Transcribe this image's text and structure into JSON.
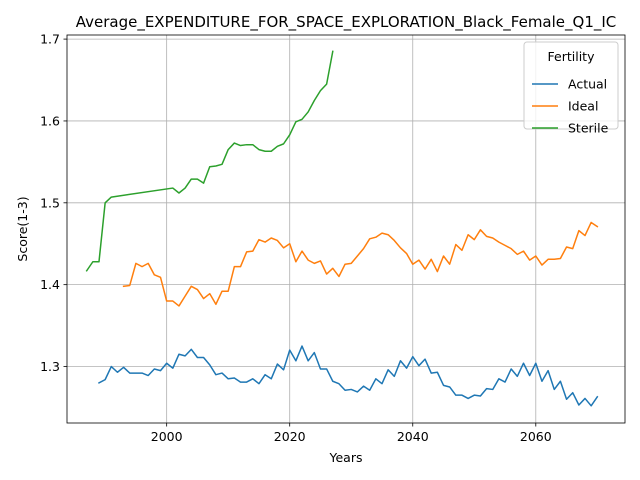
{
  "chart_data": {
    "type": "line",
    "title": "Average_EXPENDITURE_FOR_SPACE_EXPLORATION_Black_Female_Q1_IC",
    "xlabel": "Years",
    "ylabel": "Score(1-3)",
    "xlim": [
      1983.8,
      2074.5
    ],
    "ylim": [
      1.231,
      1.705
    ],
    "x_ticks": [
      2000,
      2020,
      2040,
      2060
    ],
    "y_ticks": [
      1.3,
      1.4,
      1.5,
      1.6,
      1.7
    ],
    "x_tick_labels": [
      "2000",
      "2020",
      "2040",
      "2060"
    ],
    "y_tick_labels": [
      "1.3",
      "1.4",
      "1.5",
      "1.6",
      "1.7"
    ],
    "grid": true,
    "legend": {
      "title": "Fertility",
      "position": "top-right"
    },
    "series": [
      {
        "name": "Actual",
        "color": "#1f77b4",
        "points": [
          [
            1989,
            1.28
          ],
          [
            1990,
            1.284
          ],
          [
            1991,
            1.3
          ],
          [
            1992,
            1.293
          ],
          [
            1993,
            1.299
          ],
          [
            1994,
            1.292
          ],
          [
            1995,
            1.292
          ],
          [
            1996,
            1.292
          ],
          [
            1997,
            1.289
          ],
          [
            1998,
            1.297
          ],
          [
            1999,
            1.295
          ],
          [
            2000,
            1.304
          ],
          [
            2001,
            1.298
          ],
          [
            2002,
            1.315
          ],
          [
            2003,
            1.313
          ],
          [
            2004,
            1.321
          ],
          [
            2005,
            1.311
          ],
          [
            2006,
            1.311
          ],
          [
            2007,
            1.302
          ],
          [
            2008,
            1.29
          ],
          [
            2009,
            1.292
          ],
          [
            2010,
            1.285
          ],
          [
            2011,
            1.286
          ],
          [
            2012,
            1.281
          ],
          [
            2013,
            1.281
          ],
          [
            2014,
            1.285
          ],
          [
            2015,
            1.279
          ],
          [
            2016,
            1.29
          ],
          [
            2017,
            1.285
          ],
          [
            2018,
            1.303
          ],
          [
            2019,
            1.296
          ],
          [
            2020,
            1.32
          ],
          [
            2021,
            1.307
          ],
          [
            2022,
            1.325
          ],
          [
            2023,
            1.307
          ],
          [
            2024,
            1.317
          ],
          [
            2025,
            1.297
          ],
          [
            2026,
            1.297
          ],
          [
            2027,
            1.282
          ],
          [
            2028,
            1.279
          ],
          [
            2029,
            1.271
          ],
          [
            2030,
            1.272
          ],
          [
            2031,
            1.269
          ],
          [
            2032,
            1.276
          ],
          [
            2033,
            1.271
          ],
          [
            2034,
            1.285
          ],
          [
            2035,
            1.279
          ],
          [
            2036,
            1.296
          ],
          [
            2037,
            1.288
          ],
          [
            2038,
            1.307
          ],
          [
            2039,
            1.298
          ],
          [
            2040,
            1.312
          ],
          [
            2041,
            1.301
          ],
          [
            2042,
            1.309
          ],
          [
            2043,
            1.292
          ],
          [
            2044,
            1.293
          ],
          [
            2045,
            1.277
          ],
          [
            2046,
            1.275
          ],
          [
            2047,
            1.265
          ],
          [
            2048,
            1.265
          ],
          [
            2049,
            1.261
          ],
          [
            2050,
            1.265
          ],
          [
            2051,
            1.264
          ],
          [
            2052,
            1.273
          ],
          [
            2053,
            1.272
          ],
          [
            2054,
            1.285
          ],
          [
            2055,
            1.281
          ],
          [
            2056,
            1.297
          ],
          [
            2057,
            1.288
          ],
          [
            2058,
            1.304
          ],
          [
            2059,
            1.289
          ],
          [
            2060,
            1.304
          ],
          [
            2061,
            1.282
          ],
          [
            2062,
            1.295
          ],
          [
            2063,
            1.272
          ],
          [
            2064,
            1.282
          ],
          [
            2065,
            1.26
          ],
          [
            2066,
            1.268
          ],
          [
            2067,
            1.253
          ],
          [
            2068,
            1.261
          ],
          [
            2069,
            1.252
          ],
          [
            2070,
            1.263
          ]
        ]
      },
      {
        "name": "Ideal",
        "color": "#ff7f0e",
        "points": [
          [
            1993,
            1.398
          ],
          [
            1994,
            1.399
          ],
          [
            1995,
            1.426
          ],
          [
            1996,
            1.422
          ],
          [
            1997,
            1.426
          ],
          [
            1998,
            1.412
          ],
          [
            1999,
            1.409
          ],
          [
            2000,
            1.38
          ],
          [
            2001,
            1.38
          ],
          [
            2002,
            1.374
          ],
          [
            2003,
            1.386
          ],
          [
            2004,
            1.398
          ],
          [
            2005,
            1.394
          ],
          [
            2006,
            1.383
          ],
          [
            2007,
            1.389
          ],
          [
            2008,
            1.376
          ],
          [
            2009,
            1.392
          ],
          [
            2010,
            1.392
          ],
          [
            2011,
            1.422
          ],
          [
            2012,
            1.422
          ],
          [
            2013,
            1.44
          ],
          [
            2014,
            1.441
          ],
          [
            2015,
            1.455
          ],
          [
            2016,
            1.452
          ],
          [
            2017,
            1.457
          ],
          [
            2018,
            1.454
          ],
          [
            2019,
            1.445
          ],
          [
            2020,
            1.45
          ],
          [
            2021,
            1.428
          ],
          [
            2022,
            1.441
          ],
          [
            2023,
            1.43
          ],
          [
            2024,
            1.426
          ],
          [
            2025,
            1.429
          ],
          [
            2026,
            1.413
          ],
          [
            2027,
            1.42
          ],
          [
            2028,
            1.41
          ],
          [
            2029,
            1.425
          ],
          [
            2030,
            1.426
          ],
          [
            2031,
            1.435
          ],
          [
            2032,
            1.444
          ],
          [
            2033,
            1.456
          ],
          [
            2034,
            1.458
          ],
          [
            2035,
            1.463
          ],
          [
            2036,
            1.461
          ],
          [
            2037,
            1.454
          ],
          [
            2038,
            1.445
          ],
          [
            2039,
            1.438
          ],
          [
            2040,
            1.425
          ],
          [
            2041,
            1.43
          ],
          [
            2042,
            1.419
          ],
          [
            2043,
            1.431
          ],
          [
            2044,
            1.416
          ],
          [
            2045,
            1.435
          ],
          [
            2046,
            1.425
          ],
          [
            2047,
            1.449
          ],
          [
            2048,
            1.442
          ],
          [
            2049,
            1.461
          ],
          [
            2050,
            1.455
          ],
          [
            2051,
            1.467
          ],
          [
            2052,
            1.459
          ],
          [
            2053,
            1.457
          ],
          [
            2054,
            1.452
          ],
          [
            2055,
            1.448
          ],
          [
            2056,
            1.444
          ],
          [
            2057,
            1.437
          ],
          [
            2058,
            1.441
          ],
          [
            2059,
            1.43
          ],
          [
            2060,
            1.435
          ],
          [
            2061,
            1.424
          ],
          [
            2062,
            1.431
          ],
          [
            2063,
            1.431
          ],
          [
            2064,
            1.432
          ],
          [
            2065,
            1.446
          ],
          [
            2066,
            1.444
          ],
          [
            2067,
            1.466
          ],
          [
            2068,
            1.46
          ],
          [
            2069,
            1.476
          ],
          [
            2070,
            1.471
          ]
        ]
      },
      {
        "name": "Sterile",
        "color": "#2ca02c",
        "points": [
          [
            1987,
            1.417
          ],
          [
            1988,
            1.428
          ],
          [
            1989,
            1.428
          ],
          [
            1990,
            1.5
          ],
          [
            1991,
            1.507
          ],
          [
            2001,
            1.518
          ],
          [
            2002,
            1.512
          ],
          [
            2003,
            1.518
          ],
          [
            2004,
            1.529
          ],
          [
            2005,
            1.529
          ],
          [
            2006,
            1.524
          ],
          [
            2007,
            1.544
          ],
          [
            2008,
            1.545
          ],
          [
            2009,
            1.547
          ],
          [
            2010,
            1.565
          ],
          [
            2011,
            1.573
          ],
          [
            2012,
            1.57
          ],
          [
            2013,
            1.571
          ],
          [
            2014,
            1.571
          ],
          [
            2015,
            1.565
          ],
          [
            2016,
            1.563
          ],
          [
            2017,
            1.563
          ],
          [
            2018,
            1.569
          ],
          [
            2019,
            1.572
          ],
          [
            2020,
            1.583
          ],
          [
            2021,
            1.599
          ],
          [
            2022,
            1.602
          ],
          [
            2023,
            1.611
          ],
          [
            2024,
            1.625
          ],
          [
            2025,
            1.637
          ],
          [
            2026,
            1.645
          ],
          [
            2027,
            1.685
          ]
        ]
      }
    ]
  }
}
